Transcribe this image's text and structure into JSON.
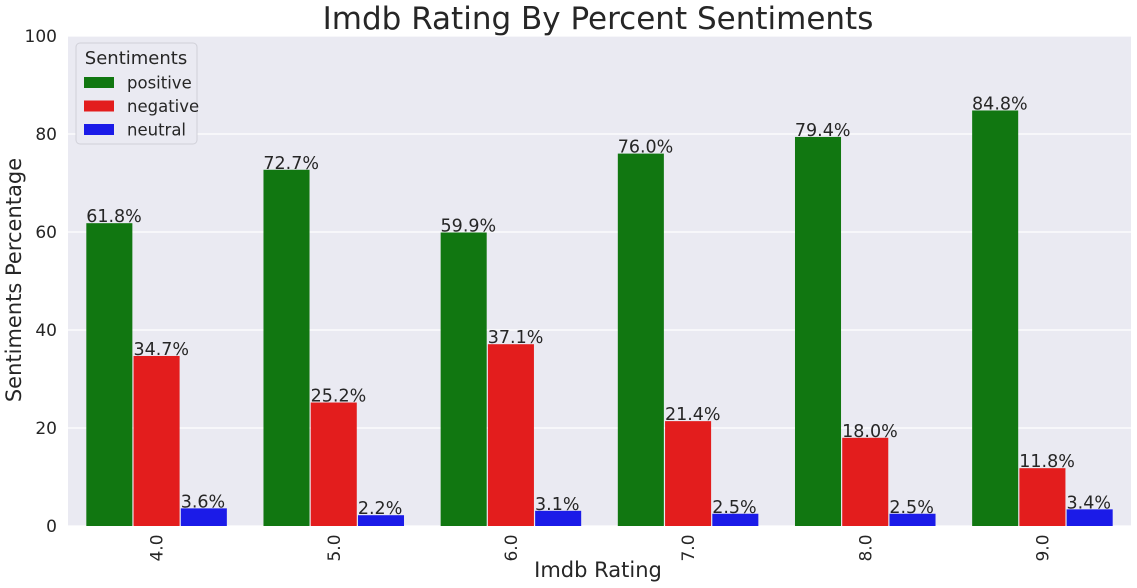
{
  "chart_data": {
    "type": "bar",
    "title": "Imdb Rating By Percent Sentiments",
    "xlabel": "Imdb Rating",
    "ylabel": "Sentiments Percentage",
    "ylim": [
      0,
      100
    ],
    "yticks": [
      "0",
      "20",
      "40",
      "60",
      "80",
      "100"
    ],
    "categories": [
      "4.0",
      "5.0",
      "6.0",
      "7.0",
      "8.0",
      "9.0"
    ],
    "grid": true,
    "legend": {
      "title": "Sentiments",
      "placement": "top-left"
    },
    "series": [
      {
        "name": "positive",
        "color": "#117711",
        "values": [
          61.8,
          72.7,
          59.9,
          76.0,
          79.4,
          84.8
        ],
        "labels": [
          "61.8%",
          "72.7%",
          "59.9%",
          "76.0%",
          "79.4%",
          "84.8%"
        ]
      },
      {
        "name": "negative",
        "color": "#e31d1d",
        "values": [
          34.7,
          25.2,
          37.1,
          21.4,
          18.0,
          11.8
        ],
        "labels": [
          "34.7%",
          "25.2%",
          "37.1%",
          "21.4%",
          "18.0%",
          "11.8%"
        ]
      },
      {
        "name": "neutral",
        "color": "#1b1be8",
        "values": [
          3.6,
          2.2,
          3.1,
          2.5,
          2.5,
          3.4
        ],
        "labels": [
          "3.6%",
          "2.2%",
          "3.1%",
          "2.5%",
          "2.5%",
          "3.4%"
        ]
      }
    ],
    "colors": {
      "plot_background": "#eaeaf2",
      "grid": "#ffffff",
      "text": "#262626"
    }
  }
}
